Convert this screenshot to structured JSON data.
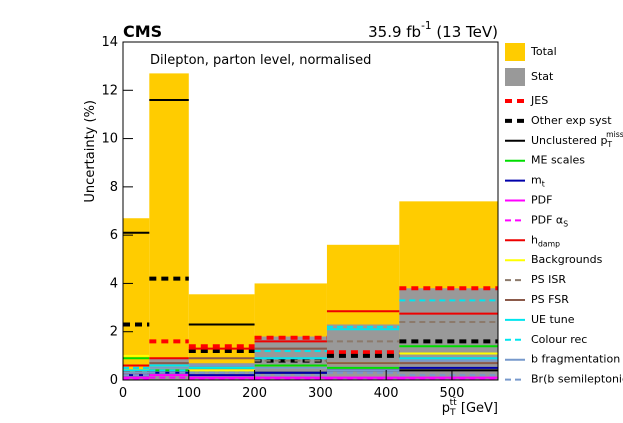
{
  "chart_data": {
    "type": "histogram",
    "title": "CMS",
    "subtitle": "35.9 fb^{-1} (13 TeV)",
    "annotation": "Dilepton, parton level, normalised",
    "y_label": "Uncertainty (%)",
    "x_label": "p_{T}^{tt̄} [GeV]",
    "bins": [
      0,
      40,
      100,
      200,
      310,
      420,
      570
    ],
    "xlim": [
      0,
      570
    ],
    "xticks": [
      0,
      100,
      200,
      300,
      400,
      500
    ],
    "ylim": [
      0,
      14
    ],
    "yticks": [
      0,
      2,
      4,
      6,
      8,
      10,
      12,
      14
    ],
    "series": [
      {
        "name": "Total",
        "color": "#ffcc00",
        "style": "fill",
        "values": [
          6.7,
          12.7,
          3.55,
          4.0,
          5.6,
          7.4
        ]
      },
      {
        "name": "Stat",
        "color": "#999999",
        "style": "fill",
        "values": [
          0.35,
          0.9,
          0.7,
          1.8,
          2.3,
          3.8
        ]
      },
      {
        "name": "JES",
        "color": "#ff0000",
        "style": "thick-dashed",
        "values": [
          0.3,
          1.6,
          1.4,
          1.75,
          1.15,
          3.8
        ]
      },
      {
        "name": "Other exp syst",
        "color": "#000000",
        "style": "thick-dashed",
        "values": [
          2.3,
          4.2,
          1.2,
          0.8,
          1.0,
          1.6
        ]
      },
      {
        "name": "Unclustered p_{T}^{miss}",
        "color": "#000000",
        "style": "solid",
        "values": [
          6.1,
          11.6,
          2.3,
          0.3,
          0.4,
          0.4
        ]
      },
      {
        "name": "ME scales",
        "color": "#00dd00",
        "style": "solid",
        "values": [
          0.9,
          0.4,
          0.5,
          0.6,
          0.5,
          1.4
        ]
      },
      {
        "name": "m_{t}",
        "color": "#0000aa",
        "style": "solid",
        "values": [
          0.2,
          0.3,
          0.2,
          0.3,
          0.4,
          0.5
        ]
      },
      {
        "name": "PDF",
        "color": "#ff00ff",
        "style": "solid",
        "values": [
          0.1,
          0.2,
          0.1,
          0.1,
          0.1,
          0.1
        ]
      },
      {
        "name": "PDF α_{S}",
        "color": "#ff00ff",
        "style": "dashed",
        "values": [
          0.05,
          0.1,
          0.05,
          0.05,
          0.05,
          0.05
        ]
      },
      {
        "name": "h_{damp}",
        "color": "#ee0000",
        "style": "solid",
        "values": [
          0.6,
          0.9,
          1.3,
          1.6,
          2.85,
          2.75
        ]
      },
      {
        "name": "Backgrounds",
        "color": "#ffff00",
        "style": "solid",
        "values": [
          1.0,
          0.5,
          0.4,
          0.5,
          0.7,
          1.1
        ]
      },
      {
        "name": "PS ISR",
        "color": "#8c7a6b",
        "style": "dashed",
        "values": [
          0.5,
          0.4,
          0.3,
          0.8,
          1.6,
          2.4
        ]
      },
      {
        "name": "PS FSR",
        "color": "#8b5a4a",
        "style": "solid",
        "values": [
          0.3,
          0.7,
          0.9,
          1.3,
          0.7,
          0.7
        ]
      },
      {
        "name": "UE tune",
        "color": "#00e5ee",
        "style": "solid",
        "values": [
          0.4,
          0.6,
          0.5,
          0.9,
          2.1,
          0.9
        ]
      },
      {
        "name": "Colour rec",
        "color": "#00e5ee",
        "style": "dashed",
        "values": [
          0.5,
          0.4,
          0.6,
          1.2,
          2.2,
          3.3
        ]
      },
      {
        "name": "b fragmentation",
        "color": "#7799cc",
        "style": "solid",
        "values": [
          0.3,
          0.5,
          0.6,
          0.5,
          0.4,
          0.8
        ]
      },
      {
        "name": "Br(b semileptonic)",
        "color": "#7799cc",
        "style": "dashed",
        "values": [
          0.2,
          0.3,
          0.3,
          0.2,
          0.3,
          0.2
        ]
      }
    ]
  }
}
